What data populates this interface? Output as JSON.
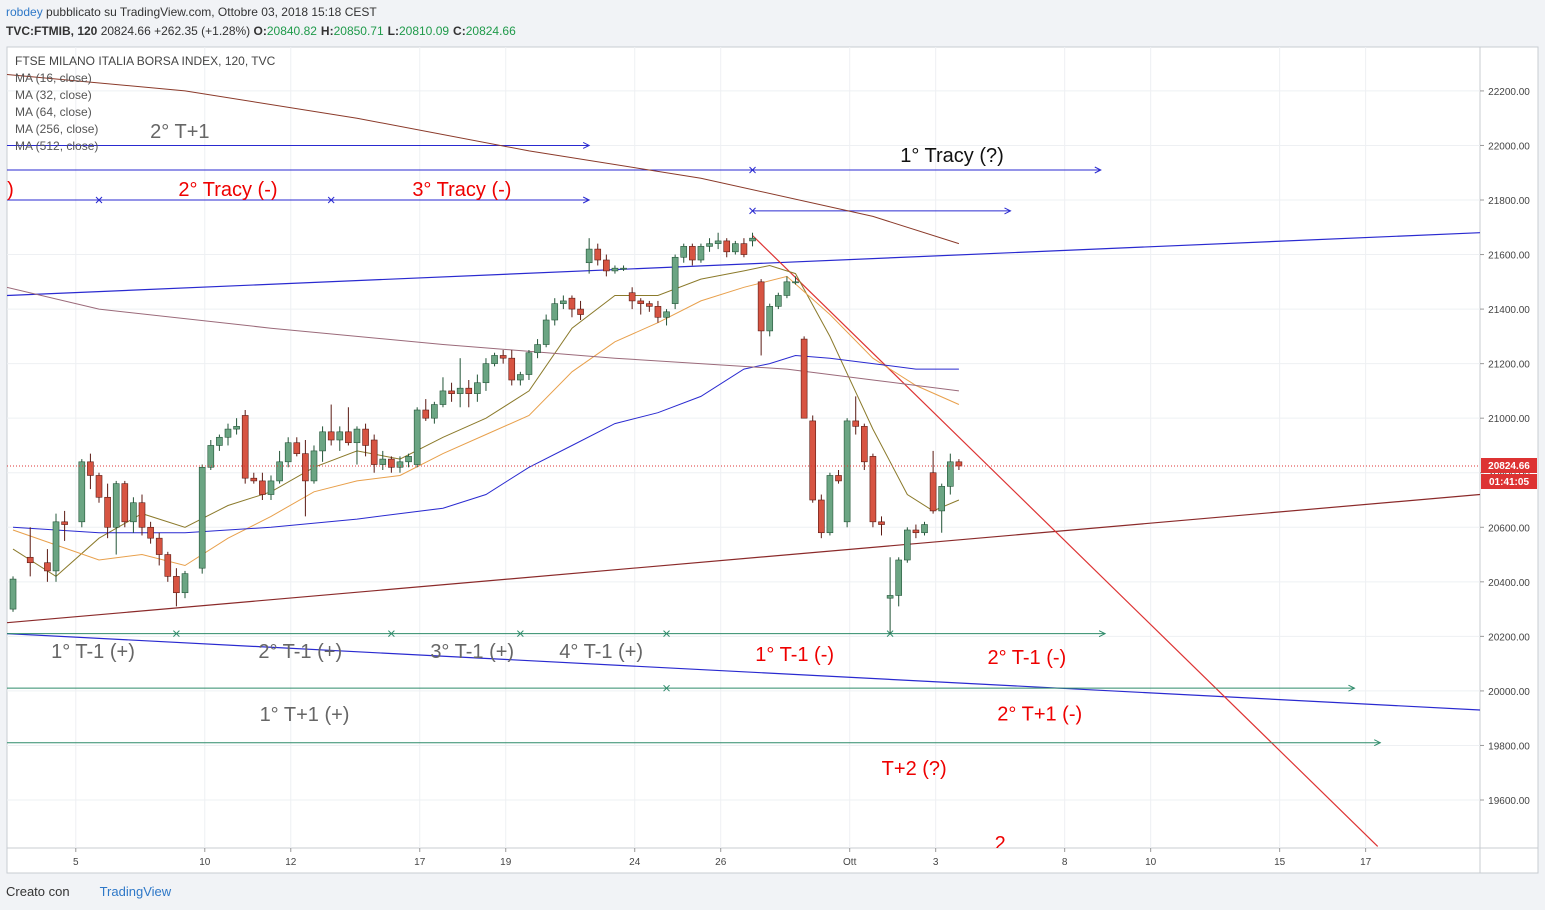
{
  "header": {
    "user": "robdey",
    "published": "pubblicato su TradingView.com, Ottobre 03, 2018 15:18 CEST",
    "symbol": "TVC:FTMIB, 120",
    "price": "20824.66",
    "change": "+262.35 (+1.28%)",
    "ohlc": [
      {
        "label": "O:",
        "value": "20840.82"
      },
      {
        "label": "H:",
        "value": "20850.71"
      },
      {
        "label": "L:",
        "value": "20810.09"
      },
      {
        "label": "C:",
        "value": "20824.66"
      }
    ]
  },
  "footer": {
    "made_with": "Creato con",
    "brand": "TradingView"
  },
  "chart_data": {
    "type": "candlestick",
    "legend_title": "FTSE MILANO ITALIA BORSA INDEX, 120, TVC",
    "xlim": [
      -0.7,
      170.6
    ],
    "ylim": [
      19424,
      22361
    ],
    "xticks": [
      {
        "value": 7.3,
        "label": "5"
      },
      {
        "value": 22.3,
        "label": "10"
      },
      {
        "value": 32.3,
        "label": "12"
      },
      {
        "value": 47.3,
        "label": "17"
      },
      {
        "value": 57.3,
        "label": "19"
      },
      {
        "value": 72.3,
        "label": "24"
      },
      {
        "value": 82.3,
        "label": "26"
      },
      {
        "value": 97.3,
        "label": "Ott"
      },
      {
        "value": 107.3,
        "label": "3"
      },
      {
        "value": 122.3,
        "label": "8"
      },
      {
        "value": 132.3,
        "label": "10"
      },
      {
        "value": 147.3,
        "label": "15"
      },
      {
        "value": 157.3,
        "label": "17"
      }
    ],
    "yticks": [
      {
        "value": 22200,
        "label": "22200.00"
      },
      {
        "value": 22000,
        "label": "22000.00"
      },
      {
        "value": 21800,
        "label": "21800.00"
      },
      {
        "value": 21600,
        "label": "21600.00"
      },
      {
        "value": 21400,
        "label": "21400.00"
      },
      {
        "value": 21200,
        "label": "21200.00"
      },
      {
        "value": 21000,
        "label": "21000.00"
      },
      {
        "value": 20800,
        "label": "20800.00"
      },
      {
        "value": 20600,
        "label": "20600.00"
      },
      {
        "value": 20400,
        "label": "20400.00"
      },
      {
        "value": 20200,
        "label": "20200.00"
      },
      {
        "value": 20000,
        "label": "20000.00"
      },
      {
        "value": 19800,
        "label": "19800.00"
      },
      {
        "value": 19600,
        "label": "19600.00"
      }
    ],
    "grid": true,
    "up_color": "#6ba583",
    "down_color": "#d75442",
    "last_price": {
      "value": 20824.66,
      "label": "20824.66"
    },
    "countdown": "01:41:05",
    "candles": [
      [
        0,
        20300,
        20420,
        20290,
        20410
      ],
      [
        2,
        20490,
        20600,
        20420,
        20470
      ],
      [
        4,
        20470,
        20520,
        20400,
        20440
      ],
      [
        5,
        20440,
        20650,
        20400,
        20620
      ],
      [
        6,
        20620,
        20660,
        20550,
        20610
      ],
      [
        8,
        20620,
        20850,
        20600,
        20840
      ],
      [
        9,
        20840,
        20870,
        20740,
        20790
      ],
      [
        10,
        20790,
        20800,
        20690,
        20710
      ],
      [
        11,
        20710,
        20760,
        20560,
        20600
      ],
      [
        12,
        20600,
        20770,
        20500,
        20760
      ],
      [
        13,
        20760,
        20770,
        20600,
        20620
      ],
      [
        14,
        20620,
        20710,
        20580,
        20690
      ],
      [
        15,
        20690,
        20720,
        20570,
        20600
      ],
      [
        16,
        20600,
        20620,
        20540,
        20560
      ],
      [
        17,
        20560,
        20580,
        20460,
        20500
      ],
      [
        18,
        20500,
        20510,
        20400,
        20420
      ],
      [
        19,
        20420,
        20450,
        20310,
        20360
      ],
      [
        20,
        20360,
        20440,
        20340,
        20430
      ],
      [
        22,
        20450,
        20830,
        20430,
        20820
      ],
      [
        23,
        20820,
        20920,
        20810,
        20900
      ],
      [
        24,
        20900,
        20940,
        20880,
        20930
      ],
      [
        25,
        20930,
        20980,
        20900,
        20960
      ],
      [
        26,
        20960,
        21000,
        20940,
        20970
      ],
      [
        27,
        21010,
        21030,
        20760,
        20780
      ],
      [
        28,
        20780,
        20800,
        20760,
        20770
      ],
      [
        29,
        20770,
        20800,
        20700,
        20720
      ],
      [
        30,
        20720,
        20790,
        20700,
        20770
      ],
      [
        31,
        20770,
        20880,
        20760,
        20840
      ],
      [
        32,
        20840,
        20930,
        20820,
        20910
      ],
      [
        33,
        20910,
        20930,
        20860,
        20870
      ],
      [
        34,
        20870,
        20920,
        20640,
        20770
      ],
      [
        35,
        20770,
        20900,
        20760,
        20880
      ],
      [
        36,
        20880,
        20970,
        20840,
        20950
      ],
      [
        37,
        20950,
        21050,
        20900,
        20920
      ],
      [
        38,
        20920,
        20970,
        20880,
        20950
      ],
      [
        39,
        20950,
        21040,
        20900,
        20910
      ],
      [
        40,
        20910,
        20970,
        20830,
        20960
      ],
      [
        41,
        20960,
        20980,
        20860,
        20900
      ],
      [
        42,
        20920,
        20940,
        20800,
        20830
      ],
      [
        43,
        20830,
        20880,
        20810,
        20850
      ],
      [
        44,
        20850,
        20860,
        20800,
        20820
      ],
      [
        45,
        20820,
        20860,
        20800,
        20840
      ],
      [
        46,
        20840,
        20870,
        20820,
        20860
      ],
      [
        47,
        20830,
        21040,
        20820,
        21030
      ],
      [
        48,
        21030,
        21070,
        20990,
        21000
      ],
      [
        49,
        21000,
        21060,
        20980,
        21050
      ],
      [
        50,
        21050,
        21150,
        21040,
        21100
      ],
      [
        51,
        21100,
        21130,
        21060,
        21090
      ],
      [
        52,
        21090,
        21220,
        21040,
        21110
      ],
      [
        53,
        21110,
        21140,
        21040,
        21090
      ],
      [
        54,
        21090,
        21160,
        21060,
        21130
      ],
      [
        55,
        21130,
        21220,
        21100,
        21200
      ],
      [
        56,
        21200,
        21240,
        21190,
        21230
      ],
      [
        57,
        21230,
        21250,
        21200,
        21220
      ],
      [
        58,
        21220,
        21250,
        21120,
        21140
      ],
      [
        59,
        21140,
        21170,
        21120,
        21160
      ],
      [
        60,
        21160,
        21250,
        21140,
        21240
      ],
      [
        61,
        21240,
        21290,
        21220,
        21270
      ],
      [
        62,
        21270,
        21380,
        21260,
        21360
      ],
      [
        63,
        21360,
        21440,
        21340,
        21420
      ],
      [
        64,
        21420,
        21450,
        21400,
        21430
      ],
      [
        65,
        21440,
        21450,
        21370,
        21400
      ],
      [
        66,
        21400,
        21430,
        21360,
        21380
      ],
      [
        67,
        21570,
        21660,
        21530,
        21620
      ],
      [
        68,
        21620,
        21640,
        21560,
        21580
      ],
      [
        69,
        21580,
        21600,
        21520,
        21540
      ],
      [
        70,
        21540,
        21560,
        21530,
        21550
      ],
      [
        71,
        21550,
        21560,
        21540,
        21550
      ],
      [
        72,
        21460,
        21480,
        21400,
        21430
      ],
      [
        73,
        21430,
        21440,
        21380,
        21420
      ],
      [
        74,
        21420,
        21430,
        21390,
        21410
      ],
      [
        75,
        21410,
        21430,
        21350,
        21370
      ],
      [
        76,
        21370,
        21400,
        21340,
        21390
      ],
      [
        77,
        21420,
        21600,
        21400,
        21590
      ],
      [
        78,
        21590,
        21640,
        21570,
        21630
      ],
      [
        79,
        21630,
        21640,
        21560,
        21580
      ],
      [
        80,
        21580,
        21640,
        21570,
        21630
      ],
      [
        81,
        21630,
        21660,
        21610,
        21640
      ],
      [
        82,
        21640,
        21680,
        21620,
        21650
      ],
      [
        83,
        21650,
        21660,
        21590,
        21610
      ],
      [
        84,
        21610,
        21650,
        21600,
        21640
      ],
      [
        85,
        21640,
        21660,
        21590,
        21600
      ],
      [
        86,
        21650,
        21680,
        21630,
        21660
      ],
      [
        87,
        21500,
        21510,
        21230,
        21320
      ],
      [
        88,
        21320,
        21420,
        21300,
        21410
      ],
      [
        89,
        21410,
        21460,
        21400,
        21450
      ],
      [
        90,
        21450,
        21520,
        21440,
        21500
      ],
      [
        91,
        21500,
        21520,
        21490,
        21500
      ],
      [
        92,
        21290,
        21300,
        21000,
        21000
      ],
      [
        93,
        20990,
        21010,
        20690,
        20700
      ],
      [
        94,
        20700,
        20720,
        20560,
        20580
      ],
      [
        95,
        20580,
        20800,
        20570,
        20790
      ],
      [
        96,
        20790,
        20810,
        20760,
        20770
      ],
      [
        97,
        20620,
        21000,
        20600,
        20990
      ],
      [
        98,
        20990,
        21080,
        20940,
        20970
      ],
      [
        99,
        20970,
        20980,
        20810,
        20840
      ],
      [
        100,
        20860,
        20870,
        20600,
        20620
      ],
      [
        101,
        20620,
        20640,
        20570,
        20610
      ],
      [
        102,
        20340,
        20490,
        20210,
        20350
      ],
      [
        103,
        20350,
        20490,
        20310,
        20480
      ],
      [
        104,
        20480,
        20600,
        20470,
        20590
      ],
      [
        105,
        20590,
        20610,
        20560,
        20580
      ],
      [
        106,
        20580,
        20620,
        20570,
        20610
      ],
      [
        107,
        20800,
        20880,
        20650,
        20660
      ],
      [
        108,
        20660,
        20760,
        20580,
        20750
      ],
      [
        109,
        20750,
        20870,
        20720,
        20840
      ],
      [
        110,
        20840,
        20850,
        20810,
        20824.66
      ]
    ],
    "series": [
      {
        "name": "MA (16, close)",
        "color": "#8b7a2b",
        "x": [
          0,
          5,
          10,
          15,
          20,
          25,
          30,
          35,
          40,
          45,
          50,
          55,
          60,
          65,
          70,
          75,
          80,
          85,
          88,
          91,
          95,
          100,
          104,
          107,
          110
        ],
        "values": [
          20520,
          20420,
          20560,
          20650,
          20600,
          20680,
          20730,
          20820,
          20880,
          20850,
          20930,
          21000,
          21100,
          21330,
          21450,
          21450,
          21510,
          21540,
          21560,
          21530,
          21300,
          20960,
          20720,
          20660,
          20700
        ]
      },
      {
        "name": "MA (32, close)",
        "color": "#e8a04c",
        "x": [
          0,
          10,
          15,
          20,
          25,
          30,
          35,
          40,
          45,
          50,
          55,
          60,
          65,
          70,
          75,
          80,
          85,
          90,
          95,
          100,
          105,
          110
        ],
        "values": [
          20590,
          20480,
          20500,
          20460,
          20560,
          20640,
          20730,
          20770,
          20790,
          20870,
          20940,
          21010,
          21170,
          21280,
          21350,
          21430,
          21480,
          21520,
          21380,
          21220,
          21120,
          21050
        ]
      },
      {
        "name": "MA (64, close)",
        "color": "#2a2ad0",
        "x": [
          0,
          10,
          20,
          30,
          40,
          50,
          55,
          60,
          65,
          70,
          75,
          80,
          85,
          88,
          91,
          95,
          100,
          105,
          110
        ],
        "values": [
          20600,
          20580,
          20580,
          20600,
          20630,
          20670,
          20720,
          20820,
          20900,
          20980,
          21020,
          21080,
          21180,
          21200,
          21230,
          21220,
          21200,
          21180,
          21180
        ]
      },
      {
        "name": "MA (256, close)",
        "color": "#9b6a7a",
        "x": [
          -0.7,
          10,
          30,
          50,
          70,
          90,
          100,
          110
        ],
        "values": [
          21480,
          21400,
          21330,
          21270,
          21220,
          21180,
          21140,
          21100
        ]
      },
      {
        "name": "MA (512, close)",
        "color": "#8b3a2a",
        "x": [
          -0.7,
          20,
          40,
          60,
          80,
          100,
          110
        ],
        "values": [
          22260,
          22200,
          22100,
          21980,
          21880,
          21740,
          21640
        ]
      }
    ],
    "trend_lines": [
      {
        "color": "#2a2ad0",
        "x": [
          -0.7,
          170.6
        ],
        "values": [
          21450,
          21680
        ]
      },
      {
        "color": "#8b2a2a",
        "x": [
          -0.7,
          170.6
        ],
        "values": [
          20250,
          20720
        ]
      },
      {
        "color": "#2a2ad0",
        "x": [
          -0.7,
          170.6
        ],
        "values": [
          20210,
          19930
        ]
      },
      {
        "color": "#d33",
        "x": [
          86,
          158.7
        ],
        "values": [
          21670,
          19430
        ]
      }
    ],
    "arrows": [
      {
        "color": "#2a2ad0",
        "value": 22000,
        "x": [
          -0.7,
          67
        ],
        "markers": []
      },
      {
        "color": "#2a2ad0",
        "value": 21910,
        "x": [
          -0.7,
          126.5
        ],
        "markers": [
          86
        ]
      },
      {
        "color": "#2a2ad0",
        "value": 21800,
        "x": [
          -0.7,
          67
        ],
        "markers": [
          10,
          37
        ]
      },
      {
        "color": "#2a2ad0",
        "value": 21760,
        "x": [
          86,
          116
        ],
        "markers": [
          86
        ]
      },
      {
        "color": "#2e8b6a",
        "value": 20210,
        "x": [
          -0.7,
          127
        ],
        "markers": [
          19,
          44,
          59,
          76,
          102
        ]
      },
      {
        "color": "#2e8b6a",
        "value": 20010,
        "x": [
          -0.7,
          156
        ],
        "markers": [
          76
        ]
      },
      {
        "color": "#2e8b6a",
        "value": 19810,
        "x": [
          -0.7,
          159
        ],
        "markers": []
      }
    ],
    "annotations": [
      {
        "text": "2° T+1",
        "x": 19.4,
        "y": 22053,
        "color": "#666"
      },
      {
        "text": "1° Tracy (?)",
        "x": 109.2,
        "y": 21965,
        "color": "#111"
      },
      {
        "text": ")",
        "x": -0.3,
        "y": 21841,
        "color": "#e00"
      },
      {
        "text": "2° Tracy (-)",
        "x": 25,
        "y": 21841,
        "color": "#e00"
      },
      {
        "text": "3° Tracy (-)",
        "x": 52.2,
        "y": 21841,
        "color": "#e00"
      },
      {
        "text": "1° T-1 (+)",
        "x": 9.3,
        "y": 20147,
        "color": "#666"
      },
      {
        "text": "2° T-1 (+)",
        "x": 33.4,
        "y": 20147,
        "color": "#666"
      },
      {
        "text": "3° T-1 (+)",
        "x": 53.4,
        "y": 20147,
        "color": "#666"
      },
      {
        "text": "4° T-1 (+)",
        "x": 68.4,
        "y": 20147,
        "color": "#666"
      },
      {
        "text": "1° T-1 (-)",
        "x": 90.9,
        "y": 20135,
        "color": "#e00"
      },
      {
        "text": "2° T-1 (-)",
        "x": 117.9,
        "y": 20124,
        "color": "#e00"
      },
      {
        "text": "1° T+1 (+)",
        "x": 33.9,
        "y": 19916,
        "color": "#666"
      },
      {
        "text": "2° T+1 (-)",
        "x": 119.4,
        "y": 19918,
        "color": "#e00"
      },
      {
        "text": "T+2 (?)",
        "x": 104.8,
        "y": 19717,
        "color": "#e00"
      },
      {
        "text": "2",
        "x": 114.8,
        "y": 19442,
        "color": "#e00"
      }
    ]
  }
}
